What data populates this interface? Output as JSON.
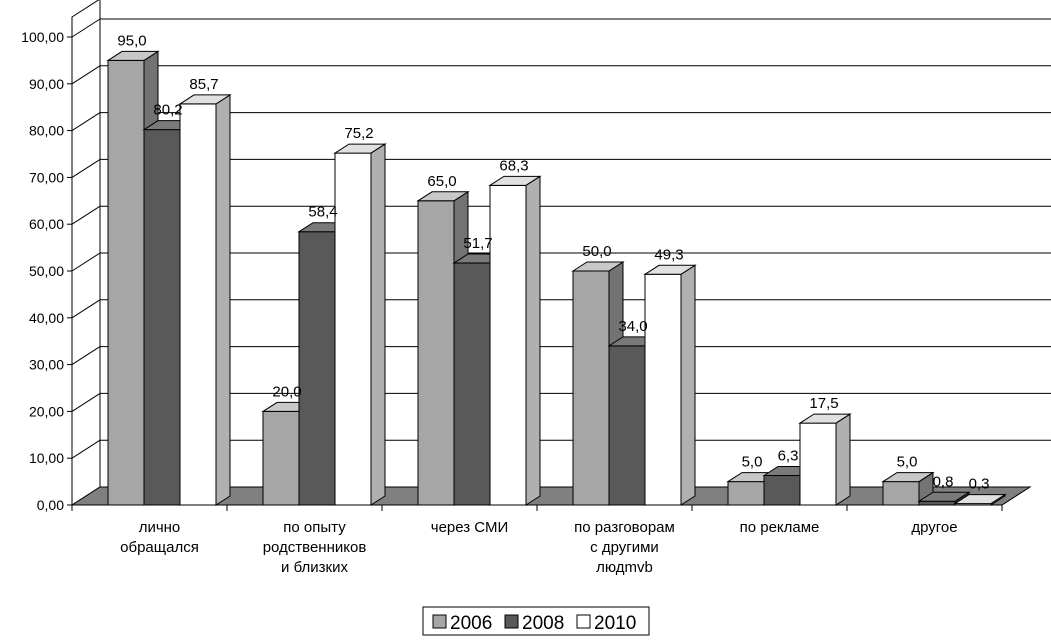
{
  "chart_data": {
    "type": "bar",
    "categories": [
      [
        "лично",
        "обращался"
      ],
      [
        "по опыту",
        "родственников",
        "и близких"
      ],
      [
        "через СМИ"
      ],
      [
        "по разговорам",
        "с другими",
        "людmvb"
      ],
      [
        "по рекламе"
      ],
      [
        "другое"
      ]
    ],
    "series": [
      {
        "name": "2006",
        "values": [
          95.0,
          20.0,
          65.0,
          50.0,
          5.0,
          5.0
        ],
        "labels": [
          "95,0",
          "20,0",
          "65,0",
          "50,0",
          "5,0",
          "5,0"
        ]
      },
      {
        "name": "2008",
        "values": [
          80.2,
          58.4,
          51.7,
          34.0,
          6.3,
          0.8
        ],
        "labels": [
          "80,2",
          "58,4",
          "51,7",
          "34,0",
          "6,3",
          "0,8"
        ]
      },
      {
        "name": "2010",
        "values": [
          85.7,
          75.2,
          68.3,
          49.3,
          17.5,
          0.3
        ],
        "labels": [
          "85,7",
          "75,2",
          "68,3",
          "49,3",
          "17,5",
          "0,3"
        ]
      }
    ],
    "yticks": [
      "0,00",
      "10,00",
      "20,00",
      "30,00",
      "40,00",
      "50,00",
      "60,00",
      "70,00",
      "80,00",
      "90,00",
      "100,00"
    ],
    "ylim": [
      0,
      100
    ],
    "grid": true,
    "legend_position": "bottom",
    "colors": {
      "2006": "#a6a6a6",
      "2008": "#595959",
      "2010": "#ffffff",
      "floor": "#808080"
    },
    "style": "3d-clustered-column"
  }
}
